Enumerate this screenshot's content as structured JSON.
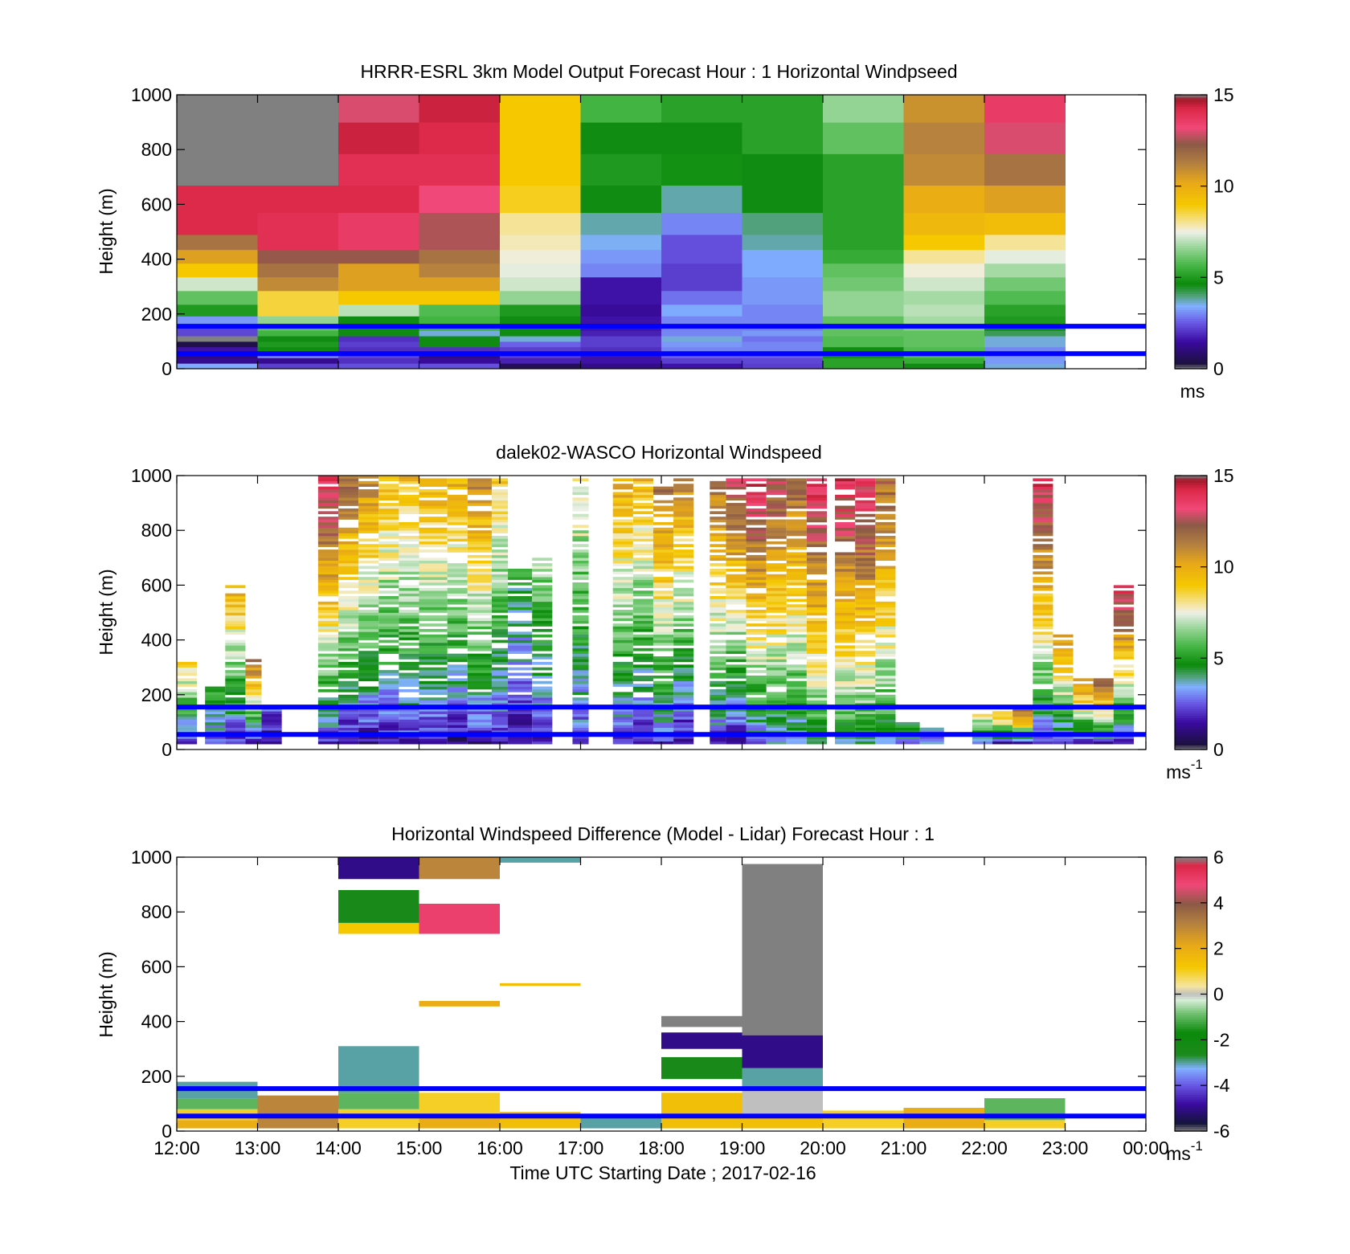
{
  "figure": {
    "xlabel": "Time UTC  Starting Date ; 2017-02-16",
    "x_tick_labels": [
      "12:00",
      "13:00",
      "14:00",
      "15:00",
      "16:00",
      "17:00",
      "18:00",
      "19:00",
      "20:00",
      "21:00",
      "22:00",
      "23:00",
      "00:00"
    ]
  },
  "chart_data": [
    {
      "type": "heatmap",
      "title": "HRRR-ESRL 3km Model Output   Forecast Hour : 1 Horizontal Windpseed",
      "ylabel": "Height (m)",
      "xlim": [
        "12:00",
        "00:00"
      ],
      "ylim": [
        0,
        1000
      ],
      "y_tick_labels": [
        "0",
        "200",
        "400",
        "600",
        "800",
        "1000"
      ],
      "colorbar": {
        "min": 0,
        "max": 15,
        "tick_labels": [
          "0",
          "5",
          "10",
          "15"
        ],
        "unit": "ms"
      },
      "reference_lines_height_m": [
        155,
        55
      ],
      "reference_line_color": "#0000ff",
      "height_levels_m": [
        10,
        30,
        50,
        70,
        90,
        110,
        130,
        150,
        175,
        210,
        260,
        310,
        360,
        410,
        460,
        520,
        620,
        720,
        850,
        950
      ],
      "times": [
        "12:00",
        "13:00",
        "14:00",
        "15:00",
        "16:00",
        "17:00",
        "18:00",
        "19:00",
        "20:00",
        "21:00",
        "22:00"
      ],
      "windspeed_ms_by_time": [
        [
          3.4,
          1.3,
          1.0,
          1.6,
          0.4,
          0.0,
          2.3,
          2.3,
          3.2,
          5.0,
          6.0,
          7.2,
          9.0,
          10.4,
          11.6,
          14.2,
          14.2,
          0.0,
          0.0,
          0.0
        ],
        [
          2.2,
          1.3,
          3.0,
          4.6,
          5.0,
          4.6,
          5.6,
          6.0,
          6.6,
          8.6,
          8.6,
          11.0,
          11.6,
          12.4,
          14.0,
          14.0,
          14.2,
          0.0,
          0.0,
          15.0
        ],
        [
          2.4,
          2.0,
          2.3,
          2.0,
          2.2,
          2.0,
          4.6,
          4.6,
          4.6,
          7.0,
          9.0,
          10.4,
          10.4,
          12.4,
          13.6,
          13.6,
          14.2,
          14.0,
          14.4,
          13.0
        ],
        [
          2.4,
          1.4,
          1.0,
          2.0,
          4.6,
          4.6,
          3.6,
          5.6,
          5.6,
          5.8,
          9.0,
          10.4,
          11.2,
          11.6,
          12.6,
          12.6,
          13.2,
          14.0,
          14.2,
          14.4
        ],
        [
          0.6,
          1.8,
          2.2,
          2.2,
          2.6,
          3.6,
          4.6,
          4.6,
          4.6,
          5.0,
          6.6,
          7.2,
          7.4,
          7.6,
          7.8,
          8.0,
          8.8,
          9.0,
          9.0,
          9.0
        ],
        [
          1.2,
          1.6,
          1.6,
          2.0,
          2.2,
          2.2,
          1.8,
          1.6,
          1.6,
          1.4,
          1.6,
          1.6,
          3.0,
          3.2,
          3.5,
          3.8,
          4.6,
          5.0,
          4.6,
          5.6
        ],
        [
          1.6,
          2.2,
          2.6,
          3.0,
          3.2,
          3.6,
          3.0,
          3.0,
          3.0,
          3.4,
          2.8,
          2.2,
          2.2,
          2.4,
          2.4,
          3.0,
          3.8,
          4.8,
          4.6,
          5.2
        ],
        [
          2.2,
          2.3,
          2.6,
          3.0,
          3.0,
          2.8,
          3.2,
          3.0,
          3.0,
          3.0,
          3.2,
          3.2,
          3.4,
          3.4,
          3.8,
          4.0,
          4.6,
          4.6,
          5.2,
          5.2
        ],
        [
          5.2,
          5.2,
          4.8,
          4.6,
          5.8,
          5.8,
          6.0,
          6.0,
          6.0,
          6.6,
          6.6,
          6.2,
          6.0,
          5.4,
          5.2,
          5.2,
          5.2,
          5.2,
          6.0,
          6.6
        ],
        [
          4.6,
          5.4,
          5.8,
          5.8,
          6.0,
          6.0,
          6.0,
          6.4,
          6.8,
          7.0,
          6.8,
          7.2,
          7.6,
          8.0,
          9.0,
          9.6,
          10.0,
          11.0,
          11.2,
          10.8
        ],
        [
          3.6,
          3.2,
          3.2,
          3.0,
          3.6,
          3.6,
          4.2,
          4.6,
          5.0,
          5.2,
          5.8,
          6.2,
          6.8,
          7.4,
          8.0,
          9.4,
          10.4,
          11.6,
          13.0,
          13.6
        ]
      ]
    },
    {
      "type": "heatmap",
      "title": "dalek02-WASCO  Horizontal Windspeed",
      "ylabel": "Height (m)",
      "xlim": [
        "12:00",
        "00:00"
      ],
      "ylim": [
        0,
        1000
      ],
      "y_tick_labels": [
        "0",
        "200",
        "400",
        "600",
        "800",
        "1000"
      ],
      "colorbar": {
        "min": 0,
        "max": 15,
        "tick_labels": [
          "0",
          "5",
          "10",
          "15"
        ],
        "unit": "ms-1",
        "unit_base": "ms",
        "unit_exponent": "-1"
      },
      "reference_lines_height_m": [
        155,
        55
      ],
      "reference_line_color": "#0000ff",
      "sampling_note": "lidar profiles approx. every 15 min; white = no data",
      "segments": [
        {
          "t0": 12.0,
          "t1": 12.25,
          "h0": 20,
          "h1": 320,
          "v0": 1.5,
          "v1": 9
        },
        {
          "t0": 12.35,
          "t1": 12.6,
          "h0": 20,
          "h1": 230,
          "v0": 2,
          "v1": 6
        },
        {
          "t0": 12.6,
          "t1": 12.85,
          "h0": 20,
          "h1": 600,
          "v0": 1.5,
          "v1": 10
        },
        {
          "t0": 12.85,
          "t1": 13.05,
          "h0": 20,
          "h1": 330,
          "v0": 1.5,
          "v1": 12
        },
        {
          "t0": 13.05,
          "t1": 13.3,
          "h0": 20,
          "h1": 160,
          "v0": 1,
          "v1": 3
        },
        {
          "t0": 13.75,
          "t1": 14.0,
          "h0": 20,
          "h1": 1000,
          "v0": 2,
          "v1": 14
        },
        {
          "t0": 14.0,
          "t1": 14.25,
          "h0": 20,
          "h1": 1000,
          "v0": 1,
          "v1": 12
        },
        {
          "t0": 14.25,
          "t1": 14.5,
          "h0": 20,
          "h1": 1000,
          "v0": 1,
          "v1": 11
        },
        {
          "t0": 14.5,
          "t1": 14.75,
          "h0": 20,
          "h1": 1000,
          "v0": 1.5,
          "v1": 9.5
        },
        {
          "t0": 14.75,
          "t1": 15.0,
          "h0": 20,
          "h1": 1000,
          "v0": 2,
          "v1": 9.5
        },
        {
          "t0": 15.0,
          "t1": 15.35,
          "h0": 20,
          "h1": 990,
          "v0": 1.5,
          "v1": 10
        },
        {
          "t0": 15.35,
          "t1": 15.6,
          "h0": 20,
          "h1": 990,
          "v0": 1,
          "v1": 10
        },
        {
          "t0": 15.6,
          "t1": 15.9,
          "h0": 20,
          "h1": 990,
          "v0": 1.5,
          "v1": 11
        },
        {
          "t0": 15.9,
          "t1": 16.1,
          "h0": 20,
          "h1": 990,
          "v0": 1.5,
          "v1": 9
        },
        {
          "t0": 16.1,
          "t1": 16.4,
          "h0": 20,
          "h1": 660,
          "v0": 1,
          "v1": 5
        },
        {
          "t0": 16.4,
          "t1": 16.65,
          "h0": 20,
          "h1": 700,
          "v0": 1.5,
          "v1": 7
        },
        {
          "t0": 16.9,
          "t1": 17.1,
          "h0": 20,
          "h1": 990,
          "v0": 2,
          "v1": 8
        },
        {
          "t0": 17.4,
          "t1": 17.65,
          "h0": 20,
          "h1": 990,
          "v0": 2,
          "v1": 10
        },
        {
          "t0": 17.65,
          "t1": 17.9,
          "h0": 20,
          "h1": 990,
          "v0": 1.5,
          "v1": 9.5
        },
        {
          "t0": 17.9,
          "t1": 18.15,
          "h0": 20,
          "h1": 990,
          "v0": 2,
          "v1": 12
        },
        {
          "t0": 18.15,
          "t1": 18.4,
          "h0": 20,
          "h1": 990,
          "v0": 1,
          "v1": 11
        },
        {
          "t0": 18.6,
          "t1": 18.8,
          "h0": 20,
          "h1": 990,
          "v0": 2,
          "v1": 12
        },
        {
          "t0": 18.8,
          "t1": 19.05,
          "h0": 20,
          "h1": 990,
          "v0": 1,
          "v1": 13
        },
        {
          "t0": 19.05,
          "t1": 19.3,
          "h0": 20,
          "h1": 990,
          "v0": 2.5,
          "v1": 14
        },
        {
          "t0": 19.3,
          "t1": 19.55,
          "h0": 20,
          "h1": 990,
          "v0": 3,
          "v1": 13
        },
        {
          "t0": 19.55,
          "t1": 19.8,
          "h0": 20,
          "h1": 990,
          "v0": 3,
          "v1": 12
        },
        {
          "t0": 19.8,
          "t1": 20.05,
          "h0": 20,
          "h1": 990,
          "v0": 4,
          "v1": 14
        },
        {
          "t0": 20.15,
          "t1": 20.4,
          "h0": 20,
          "h1": 990,
          "v0": 4,
          "v1": 14
        },
        {
          "t0": 20.4,
          "t1": 20.65,
          "h0": 20,
          "h1": 990,
          "v0": 4,
          "v1": 14
        },
        {
          "t0": 20.65,
          "t1": 20.9,
          "h0": 20,
          "h1": 990,
          "v0": 4,
          "v1": 12
        },
        {
          "t0": 20.9,
          "t1": 21.2,
          "h0": 20,
          "h1": 100,
          "v0": 3,
          "v1": 5
        },
        {
          "t0": 21.2,
          "t1": 21.5,
          "h0": 20,
          "h1": 80,
          "v0": 3,
          "v1": 4
        },
        {
          "t0": 21.85,
          "t1": 22.1,
          "h0": 20,
          "h1": 130,
          "v0": 2,
          "v1": 8
        },
        {
          "t0": 22.1,
          "t1": 22.35,
          "h0": 20,
          "h1": 140,
          "v0": 2,
          "v1": 10
        },
        {
          "t0": 22.35,
          "t1": 22.6,
          "h0": 20,
          "h1": 150,
          "v0": 2,
          "v1": 13
        },
        {
          "t0": 22.6,
          "t1": 22.85,
          "h0": 20,
          "h1": 990,
          "v0": 2,
          "v1": 14
        },
        {
          "t0": 22.85,
          "t1": 23.1,
          "h0": 20,
          "h1": 420,
          "v0": 2,
          "v1": 11
        },
        {
          "t0": 23.1,
          "t1": 23.35,
          "h0": 20,
          "h1": 270,
          "v0": 2,
          "v1": 12
        },
        {
          "t0": 23.35,
          "t1": 23.6,
          "h0": 20,
          "h1": 260,
          "v0": 2,
          "v1": 13
        },
        {
          "t0": 23.6,
          "t1": 23.85,
          "h0": 20,
          "h1": 600,
          "v0": 2,
          "v1": 14
        }
      ]
    },
    {
      "type": "heatmap",
      "title": "Horizontal Windspeed Difference (Model - Lidar) Forecast Hour : 1",
      "ylabel": "Height (m)",
      "xlabel": "Time UTC  Starting Date ; 2017-02-16",
      "xlim": [
        "12:00",
        "00:00"
      ],
      "ylim": [
        0,
        1000
      ],
      "y_tick_labels": [
        "0",
        "200",
        "400",
        "600",
        "800",
        "1000"
      ],
      "colorbar": {
        "min": -6,
        "max": 6,
        "tick_labels": [
          "-6",
          "-4",
          "-2",
          "0",
          "2",
          "4",
          "6"
        ],
        "unit": "ms-1",
        "unit_base": "ms",
        "unit_exponent": "-1"
      },
      "reference_lines_height_m": [
        155,
        55
      ],
      "reference_line_color": "#0000ff",
      "blocks": [
        {
          "t0": 12,
          "t1": 13,
          "h0": 10,
          "h1": 40,
          "v": 2.0
        },
        {
          "t0": 12,
          "t1": 13,
          "h0": 40,
          "h1": 80,
          "v": 1.0
        },
        {
          "t0": 12,
          "t1": 13,
          "h0": 80,
          "h1": 120,
          "v": -1.0
        },
        {
          "t0": 12,
          "t1": 13,
          "h0": 120,
          "h1": 180,
          "v": -3.0
        },
        {
          "t0": 13,
          "t1": 14,
          "h0": 10,
          "h1": 130,
          "v": 3.0
        },
        {
          "t0": 14,
          "t1": 15,
          "h0": 10,
          "h1": 80,
          "v": 1.0
        },
        {
          "t0": 14,
          "t1": 15,
          "h0": 80,
          "h1": 140,
          "v": -1.0
        },
        {
          "t0": 14,
          "t1": 15,
          "h0": 140,
          "h1": 310,
          "v": -3.0
        },
        {
          "t0": 14,
          "t1": 15,
          "h0": 720,
          "h1": 760,
          "v": 1.2
        },
        {
          "t0": 14,
          "t1": 15,
          "h0": 760,
          "h1": 880,
          "v": -2.5
        },
        {
          "t0": 14,
          "t1": 15,
          "h0": 920,
          "h1": 1000,
          "v": -5.0
        },
        {
          "t0": 15,
          "t1": 16,
          "h0": 10,
          "h1": 60,
          "v": 2.0
        },
        {
          "t0": 15,
          "t1": 16,
          "h0": 60,
          "h1": 140,
          "v": 1.0
        },
        {
          "t0": 15,
          "t1": 16,
          "h0": 455,
          "h1": 475,
          "v": 2.0
        },
        {
          "t0": 15,
          "t1": 16,
          "h0": 720,
          "h1": 830,
          "v": 5.0
        },
        {
          "t0": 15,
          "t1": 16,
          "h0": 920,
          "h1": 1000,
          "v": 3.0
        },
        {
          "t0": 16,
          "t1": 17,
          "h0": 10,
          "h1": 70,
          "v": 1.5
        },
        {
          "t0": 16,
          "t1": 17,
          "h0": 530,
          "h1": 540,
          "v": 1.5
        },
        {
          "t0": 16,
          "t1": 17,
          "h0": 980,
          "h1": 1000,
          "v": -3.0
        },
        {
          "t0": 17,
          "t1": 18,
          "h0": 10,
          "h1": 60,
          "v": -3.0
        },
        {
          "t0": 18,
          "t1": 19,
          "h0": 10,
          "h1": 140,
          "v": 1.5
        },
        {
          "t0": 18,
          "t1": 19,
          "h0": 190,
          "h1": 270,
          "v": -2.5
        },
        {
          "t0": 18,
          "t1": 19,
          "h0": 300,
          "h1": 360,
          "v": -5.0
        },
        {
          "t0": 18,
          "t1": 19,
          "h0": 380,
          "h1": 420,
          "v": 6.0
        },
        {
          "t0": 19,
          "t1": 20,
          "h0": 10,
          "h1": 60,
          "v": 1.5
        },
        {
          "t0": 19,
          "t1": 20,
          "h0": 60,
          "h1": 150,
          "v": 0.0
        },
        {
          "t0": 19,
          "t1": 20,
          "h0": 150,
          "h1": 230,
          "v": -3.0
        },
        {
          "t0": 19,
          "t1": 20,
          "h0": 230,
          "h1": 350,
          "v": -5.0
        },
        {
          "t0": 19,
          "t1": 20,
          "h0": 350,
          "h1": 975,
          "v": 6.0
        },
        {
          "t0": 20,
          "t1": 21,
          "h0": 10,
          "h1": 75,
          "v": 1.0
        },
        {
          "t0": 21,
          "t1": 22,
          "h0": 10,
          "h1": 85,
          "v": 2.0
        },
        {
          "t0": 22,
          "t1": 23,
          "h0": 10,
          "h1": 40,
          "v": 1.0
        },
        {
          "t0": 22,
          "t1": 23,
          "h0": 40,
          "h1": 120,
          "v": -1.0
        }
      ]
    }
  ]
}
